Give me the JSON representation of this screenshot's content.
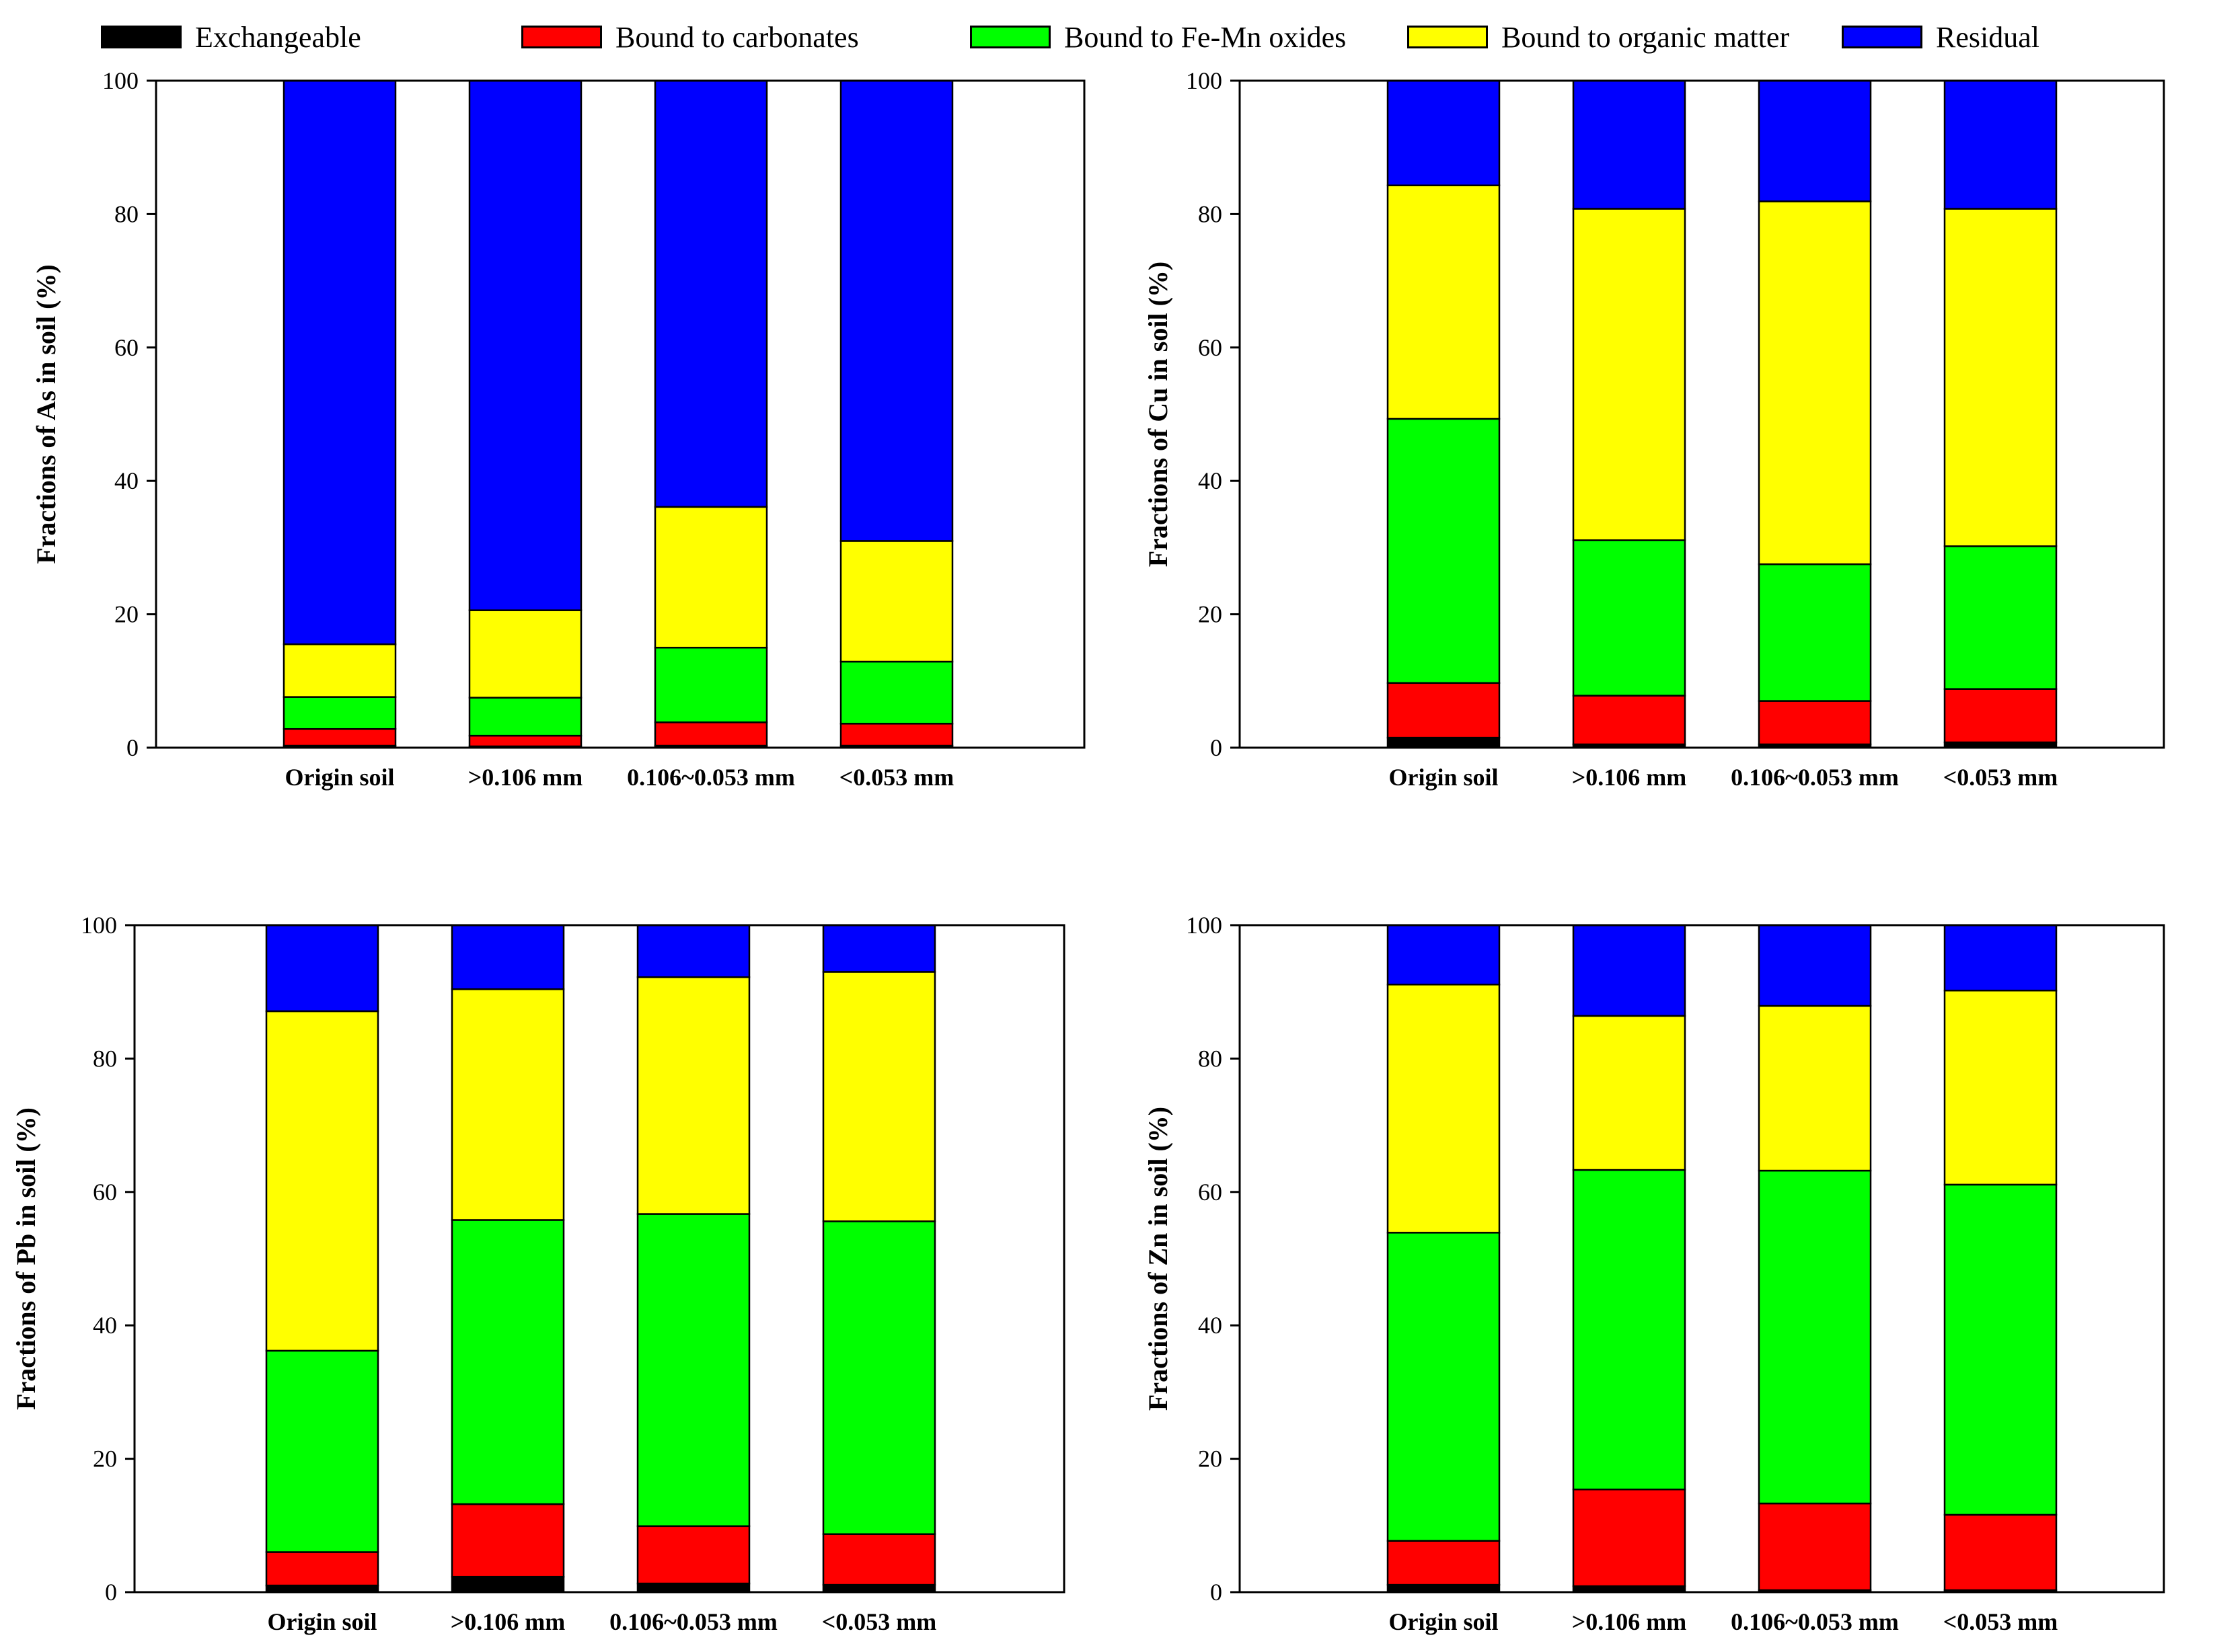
{
  "legend": {
    "items": [
      {
        "label": "Exchangeable",
        "color": "#000000"
      },
      {
        "label": "Bound to carbonates",
        "color": "#ff0000"
      },
      {
        "label": "Bound to Fe-Mn oxides",
        "color": "#00ff00"
      },
      {
        "label": "Bound to organic matter",
        "color": "#ffff00"
      },
      {
        "label": "Residual",
        "color": "#0000ff"
      }
    ]
  },
  "chart_data": [
    {
      "type": "bar",
      "stacked": true,
      "ylabel": "Fractions of As in soil (%)",
      "ylim": [
        0,
        100
      ],
      "yticks": [
        "0",
        "20",
        "40",
        "60",
        "80",
        "100"
      ],
      "categories": [
        "Origin soil",
        ">0.106 mm",
        "0.106~0.053 mm",
        "<0.053 mm"
      ],
      "series": [
        {
          "name": "Exchangeable",
          "values": [
            0.3,
            0.2,
            0.3,
            0.3
          ]
        },
        {
          "name": "Bound to carbonates",
          "values": [
            2.5,
            1.6,
            3.5,
            3.3
          ]
        },
        {
          "name": "Bound to Fe-Mn oxides",
          "values": [
            4.8,
            5.7,
            11.2,
            9.3
          ]
        },
        {
          "name": "Bound to organic matter",
          "values": [
            7.9,
            13.1,
            21.1,
            18.1
          ]
        },
        {
          "name": "Residual",
          "values": [
            84.5,
            79.4,
            63.9,
            69.0
          ]
        }
      ]
    },
    {
      "type": "bar",
      "stacked": true,
      "ylabel": "Fractions of Cu in soil (%)",
      "ylim": [
        0,
        100
      ],
      "yticks": [
        "0",
        "20",
        "40",
        "60",
        "80",
        "100"
      ],
      "categories": [
        "Origin soil",
        ">0.106 mm",
        "0.106~0.053 mm",
        "<0.053 mm"
      ],
      "series": [
        {
          "name": "Exchangeable",
          "values": [
            1.5,
            0.5,
            0.5,
            0.8
          ]
        },
        {
          "name": "Bound to carbonates",
          "values": [
            8.2,
            7.3,
            6.5,
            8.0
          ]
        },
        {
          "name": "Bound to Fe-Mn oxides",
          "values": [
            39.6,
            23.3,
            20.5,
            21.4
          ]
        },
        {
          "name": "Bound to organic matter",
          "values": [
            35.0,
            49.7,
            54.4,
            50.6
          ]
        },
        {
          "name": "Residual",
          "values": [
            15.7,
            19.2,
            18.1,
            19.2
          ]
        }
      ]
    },
    {
      "type": "bar",
      "stacked": true,
      "ylabel": "Fractions of Pb in soil (%)",
      "ylim": [
        0,
        100
      ],
      "yticks": [
        "0",
        "20",
        "40",
        "60",
        "80",
        "100"
      ],
      "categories": [
        "Origin soil",
        ">0.106 mm",
        "0.106~0.053 mm",
        "<0.053 mm"
      ],
      "series": [
        {
          "name": "Exchangeable",
          "values": [
            1.0,
            2.3,
            1.3,
            1.1
          ]
        },
        {
          "name": "Bound to carbonates",
          "values": [
            5.0,
            10.9,
            8.6,
            7.6
          ]
        },
        {
          "name": "Bound to Fe-Mn oxides",
          "values": [
            30.2,
            42.6,
            46.8,
            46.9
          ]
        },
        {
          "name": "Bound to organic matter",
          "values": [
            50.9,
            34.6,
            35.5,
            37.4
          ]
        },
        {
          "name": "Residual",
          "values": [
            12.9,
            9.6,
            7.8,
            7.0
          ]
        }
      ]
    },
    {
      "type": "bar",
      "stacked": true,
      "ylabel": "Fractions of Zn in soil (%)",
      "ylim": [
        0,
        100
      ],
      "yticks": [
        "0",
        "20",
        "40",
        "60",
        "80",
        "100"
      ],
      "categories": [
        "Origin soil",
        ">0.106 mm",
        "0.106~0.053 mm",
        "<0.053 mm"
      ],
      "series": [
        {
          "name": "Exchangeable",
          "values": [
            1.1,
            0.9,
            0.3,
            0.3
          ]
        },
        {
          "name": "Bound to carbonates",
          "values": [
            6.6,
            14.5,
            13.0,
            11.3
          ]
        },
        {
          "name": "Bound to Fe-Mn oxides",
          "values": [
            46.2,
            47.9,
            49.9,
            49.5
          ]
        },
        {
          "name": "Bound to organic matter",
          "values": [
            37.2,
            23.1,
            24.7,
            29.1
          ]
        },
        {
          "name": "Residual",
          "values": [
            8.9,
            13.6,
            12.1,
            9.8
          ]
        }
      ]
    }
  ]
}
